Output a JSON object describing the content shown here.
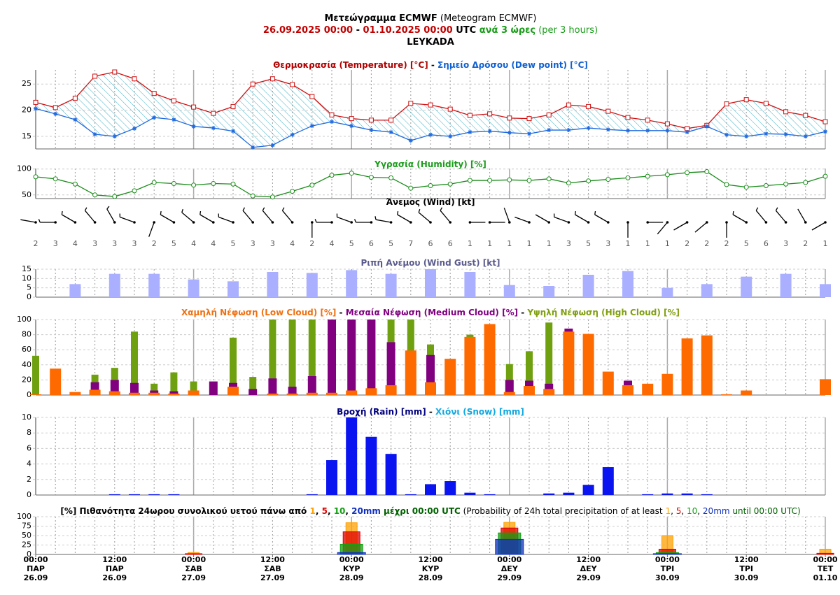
{
  "header": {
    "lines": [
      [
        {
          "text": "Μετεώγραμμα ECMWF",
          "color": "#000",
          "bold": true
        },
        {
          "text": " (Meteogram ECMWF)",
          "color": "#000",
          "bold": false
        }
      ],
      [
        {
          "text": "26.09.2025 00:00",
          "color": "#c00000",
          "bold": true
        },
        {
          "text": " - ",
          "color": "#000",
          "bold": true
        },
        {
          "text": "01.10.2025 00:00",
          "color": "#c00000",
          "bold": true
        },
        {
          "text": " UTC ",
          "color": "#000",
          "bold": true
        },
        {
          "text": "ανά 3 ώρες",
          "color": "#1a9c1a",
          "bold": true
        },
        {
          "text": " (per 3 hours)",
          "color": "#1a9c1a",
          "bold": false
        }
      ],
      [
        {
          "text": "LEYKADA",
          "color": "#000",
          "bold": true
        }
      ]
    ]
  },
  "chart_data": [
    {
      "type": "line",
      "title": [
        {
          "text": "Θερμοκρασία (Temperature) [°C]",
          "color": "#b00000"
        },
        {
          "text": " - ",
          "color": "#000"
        },
        {
          "text": "Σημείο Δρόσου (Dew point) [°C]",
          "color": "#1060d0"
        }
      ],
      "x": [
        0,
        3,
        6,
        9,
        12,
        15,
        18,
        21,
        24,
        27,
        30,
        33,
        36,
        39,
        42,
        45,
        48,
        51,
        54,
        57,
        60,
        63,
        66,
        69,
        72,
        75,
        78,
        81,
        84,
        87,
        90,
        93,
        96,
        99,
        102,
        105,
        108,
        111,
        114,
        117,
        120
      ],
      "ylim": [
        12.6,
        27.7
      ],
      "yticks": [
        15,
        20,
        25
      ],
      "hatch": "#3ab0c8",
      "series": [
        {
          "color": "#d01010",
          "marker": "square",
          "values": [
            21.5,
            20.5,
            22.3,
            26.5,
            27.3,
            26,
            23.2,
            21.8,
            20.6,
            19.4,
            20.7,
            25,
            26,
            24.9,
            22.6,
            19.1,
            18.4,
            18.1,
            18.1,
            21.3,
            21,
            20.2,
            19,
            19.3,
            18.5,
            18.4,
            19.1,
            21,
            20.7,
            19.8,
            18.6,
            18.1,
            17.4,
            16.5,
            17.1,
            21.2,
            22,
            21.3,
            19.7,
            19,
            17.8
          ]
        },
        {
          "color": "#1f6ae0",
          "marker": "star",
          "values": [
            20.3,
            19.3,
            18.2,
            15.4,
            15,
            16.5,
            18.6,
            18.2,
            16.9,
            16.6,
            16,
            12.9,
            13.3,
            15.3,
            17,
            17.8,
            17,
            16.2,
            15.8,
            14.2,
            15.3,
            15,
            15.8,
            16,
            15.7,
            15.5,
            16.2,
            16.2,
            16.6,
            16.3,
            16.1,
            16.1,
            16.1,
            15.8,
            16.9,
            15.3,
            15,
            15.5,
            15.4,
            15,
            15.9
          ]
        }
      ]
    },
    {
      "type": "line",
      "title": [
        {
          "text": "Υγρασία (Humidity) [%]",
          "color": "#1a9c1a"
        }
      ],
      "x": [
        0,
        3,
        6,
        9,
        12,
        15,
        18,
        21,
        24,
        27,
        30,
        33,
        36,
        39,
        42,
        45,
        48,
        51,
        54,
        57,
        60,
        63,
        66,
        69,
        72,
        75,
        78,
        81,
        84,
        87,
        90,
        93,
        96,
        99,
        102,
        105,
        108,
        111,
        114,
        117,
        120
      ],
      "ylim": [
        43,
        101
      ],
      "yticks": [
        50,
        100
      ],
      "series": [
        {
          "color": "#1a8c1a",
          "marker": "circle",
          "values": [
            85,
            81,
            71,
            50,
            47,
            58,
            74,
            72,
            69,
            72,
            71,
            48,
            46,
            57,
            69,
            88,
            92,
            84,
            83,
            63,
            68,
            71,
            78,
            78,
            79,
            78,
            81,
            73,
            77,
            80,
            83,
            86,
            89,
            93,
            95,
            70,
            65,
            68,
            71,
            74,
            86
          ]
        }
      ]
    },
    {
      "type": "wind",
      "title": [
        {
          "text": "Άνεμος (Wind) [kt]",
          "color": "#000"
        }
      ],
      "x": [
        0,
        3,
        6,
        9,
        12,
        15,
        18,
        21,
        24,
        27,
        30,
        33,
        36,
        39,
        42,
        45,
        48,
        51,
        54,
        57,
        60,
        63,
        66,
        69,
        72,
        75,
        78,
        81,
        84,
        87,
        90,
        93,
        96,
        99,
        102,
        105,
        108,
        111,
        114,
        117,
        120
      ],
      "speeds": [
        2,
        3,
        4,
        3,
        3,
        3,
        2,
        5,
        4,
        4,
        5,
        3,
        3,
        4,
        2,
        4,
        5,
        6,
        5,
        7,
        6,
        6,
        1,
        1,
        1,
        1,
        1,
        3,
        5,
        3,
        1,
        1,
        1,
        2,
        2,
        2,
        5,
        6,
        3,
        2,
        1
      ],
      "directions": [
        280,
        270,
        300,
        320,
        330,
        290,
        200,
        300,
        310,
        300,
        290,
        320,
        320,
        320,
        180,
        270,
        290,
        270,
        280,
        300,
        310,
        320,
        90,
        90,
        340,
        290,
        300,
        290,
        300,
        300,
        180,
        90,
        220,
        240,
        230,
        180,
        300,
        320,
        320,
        330,
        240
      ]
    },
    {
      "type": "bar",
      "title": [
        {
          "text": "Ριπή Ανέμου (Wind Gust) [kt]",
          "color": "#5a5a8c"
        }
      ],
      "x": [
        6,
        12,
        18,
        24,
        30,
        36,
        42,
        48,
        54,
        60,
        66,
        72,
        78,
        84,
        90,
        96,
        102,
        108,
        114,
        120
      ],
      "values": [
        7,
        12.5,
        12.5,
        9.5,
        8.5,
        13.5,
        13,
        14.5,
        12.5,
        15,
        13.5,
        6.5,
        6,
        12,
        14,
        5,
        7,
        11,
        12.5,
        7
      ],
      "color": "#aab0ff",
      "ylim": [
        0,
        15
      ],
      "yticks": [
        0,
        5,
        10,
        15
      ]
    },
    {
      "type": "cloud",
      "title": [
        {
          "text": "Χαμηλή Νέφωση (Low Cloud) [%]",
          "color": "#f07010"
        },
        {
          "text": " - ",
          "color": "#000"
        },
        {
          "text": "Μεσαία Νέφωση (Medium Cloud) [%]",
          "color": "#800080"
        },
        {
          "text": " - ",
          "color": "#000"
        },
        {
          "text": "Υψηλή Νέφωση (High Cloud) [%]",
          "color": "#80a010"
        }
      ],
      "x": [
        0,
        3,
        6,
        9,
        12,
        15,
        18,
        21,
        24,
        27,
        30,
        33,
        36,
        39,
        42,
        45,
        48,
        51,
        54,
        57,
        60,
        63,
        66,
        69,
        72,
        75,
        78,
        81,
        84,
        87,
        90,
        93,
        96,
        99,
        102,
        105,
        108,
        111,
        114,
        117,
        120
      ],
      "ylim": [
        0,
        100
      ],
      "yticks": [
        0,
        20,
        40,
        60,
        80,
        100
      ],
      "series": [
        {
          "color": "#6ea010",
          "values": [
            52,
            0,
            0,
            27,
            36,
            84,
            15,
            30,
            18,
            0,
            76,
            24,
            100,
            100,
            100,
            0,
            0,
            0,
            100,
            100,
            67,
            0,
            80,
            0,
            41,
            58,
            96,
            0,
            0,
            0,
            0,
            0,
            0,
            0,
            0,
            0,
            0,
            0,
            0,
            0,
            0
          ]
        },
        {
          "color": "#800080",
          "values": [
            0,
            0,
            0,
            17,
            20,
            16,
            6,
            5,
            0,
            18,
            16,
            8,
            22,
            11,
            25,
            100,
            100,
            100,
            70,
            0,
            53,
            0,
            0,
            0,
            20,
            19,
            15,
            88,
            0,
            0,
            19,
            0,
            0,
            0,
            0,
            0,
            0,
            0,
            0,
            0,
            0
          ]
        },
        {
          "color": "#ff6a00",
          "values": [
            1,
            35,
            4,
            7,
            5,
            3,
            3,
            2,
            6,
            0,
            11,
            0,
            2,
            2,
            3,
            3,
            6,
            9,
            13,
            59,
            17,
            48,
            77,
            94,
            4,
            12,
            8,
            84,
            81,
            31,
            13,
            15,
            28,
            75,
            79,
            1,
            6,
            0,
            0,
            0,
            21
          ]
        }
      ]
    },
    {
      "type": "bar",
      "title": [
        {
          "text": "Βροχή (Rain) [mm]",
          "color": "#000080"
        },
        {
          "text": " - ",
          "color": "#000"
        },
        {
          "text": "Χιόνι (Snow) [mm]",
          "color": "#10a8e0"
        }
      ],
      "x": [
        0,
        3,
        6,
        9,
        12,
        15,
        18,
        21,
        24,
        27,
        30,
        33,
        36,
        39,
        42,
        45,
        48,
        51,
        54,
        57,
        60,
        63,
        66,
        69,
        72,
        75,
        78,
        81,
        84,
        87,
        90,
        93,
        96,
        99,
        102,
        105,
        108,
        111,
        114,
        117,
        120
      ],
      "values": [
        0,
        0,
        0,
        0,
        0.1,
        0.1,
        0.1,
        0.1,
        0,
        0,
        0,
        0,
        0,
        0,
        0.1,
        4.5,
        10,
        7.5,
        5.3,
        0.1,
        1.4,
        1.8,
        0.3,
        0.1,
        0,
        0,
        0.2,
        0.3,
        1.3,
        3.6,
        0,
        0.1,
        0.2,
        0.2,
        0.1,
        0,
        0,
        0,
        0,
        0,
        0
      ],
      "color": "#0a14f0",
      "ylim": [
        0,
        10
      ],
      "yticks": [
        0,
        2,
        4,
        6,
        8,
        10
      ]
    },
    {
      "type": "prob",
      "title": [
        {
          "text": "[%] Πιθανότητα 24ωρου συνολικού υετού πάνω από ",
          "color": "#000",
          "bold": true
        },
        {
          "text": "1",
          "color": "#ffa000",
          "bold": true
        },
        {
          "text": ", ",
          "color": "#000",
          "bold": true
        },
        {
          "text": "5",
          "color": "#e00000",
          "bold": true
        },
        {
          "text": ", ",
          "color": "#000",
          "bold": true
        },
        {
          "text": "10",
          "color": "#10a010",
          "bold": true
        },
        {
          "text": ", ",
          "color": "#000",
          "bold": true
        },
        {
          "text": "20mm",
          "color": "#1030c0",
          "bold": true
        },
        {
          "text": " μέχρι 00:00 UTC",
          "color": "#006000",
          "bold": true
        },
        {
          "text": " (Probability of 24h total precipitation of at least ",
          "color": "#000",
          "bold": false
        },
        {
          "text": "1",
          "color": "#ffa000",
          "bold": false
        },
        {
          "text": ", ",
          "color": "#000",
          "bold": false
        },
        {
          "text": "5",
          "color": "#e00000",
          "bold": false
        },
        {
          "text": ", ",
          "color": "#000",
          "bold": false
        },
        {
          "text": "10",
          "color": "#10a010",
          "bold": false
        },
        {
          "text": ", ",
          "color": "#000",
          "bold": false
        },
        {
          "text": "20mm",
          "color": "#1030c0",
          "bold": false
        },
        {
          "text": " until 00:00 UTC)",
          "color": "#006000",
          "bold": false
        }
      ],
      "x": [
        24,
        48,
        72,
        96,
        120
      ],
      "xlim": [
        0,
        120
      ],
      "ylim": [
        0,
        100
      ],
      "yticks": [
        0,
        25,
        50,
        75,
        100
      ],
      "xticks": [
        {
          "value": 0,
          "label": [
            "00:00",
            "ΠΑΡ",
            "26.09"
          ]
        },
        {
          "value": 12,
          "label": [
            "12:00",
            "ΠΑΡ",
            "26.09"
          ]
        },
        {
          "value": 24,
          "label": [
            "00:00",
            "ΣΑΒ",
            "27.09"
          ]
        },
        {
          "value": 36,
          "label": [
            "12:00",
            "ΣΑΒ",
            "27.09"
          ]
        },
        {
          "value": 48,
          "label": [
            "00:00",
            "ΚΥΡ",
            "28.09"
          ]
        },
        {
          "value": 60,
          "label": [
            "12:00",
            "ΚΥΡ",
            "28.09"
          ]
        },
        {
          "value": 72,
          "label": [
            "00:00",
            "ΔΕΥ",
            "29.09"
          ]
        },
        {
          "value": 84,
          "label": [
            "12:00",
            "ΔΕΥ",
            "29.09"
          ]
        },
        {
          "value": 96,
          "label": [
            "00:00",
            "ΤΡΙ",
            "30.09"
          ]
        },
        {
          "value": 108,
          "label": [
            "12:00",
            "ΤΡΙ",
            "30.09"
          ]
        },
        {
          "value": 120,
          "label": [
            "00:00",
            "ΤΕΤ",
            "01.10"
          ]
        }
      ],
      "series": [
        {
          "color": "#ffa000",
          "values": [
            5,
            84,
            85,
            50,
            14
          ]
        },
        {
          "color": "#e00000",
          "values": [
            2,
            60,
            70,
            14,
            3
          ]
        },
        {
          "color": "#10a010",
          "values": [
            0,
            27,
            57,
            5,
            0
          ]
        },
        {
          "color": "#1030c0",
          "values": [
            0,
            5,
            40,
            2,
            0
          ]
        }
      ]
    }
  ]
}
